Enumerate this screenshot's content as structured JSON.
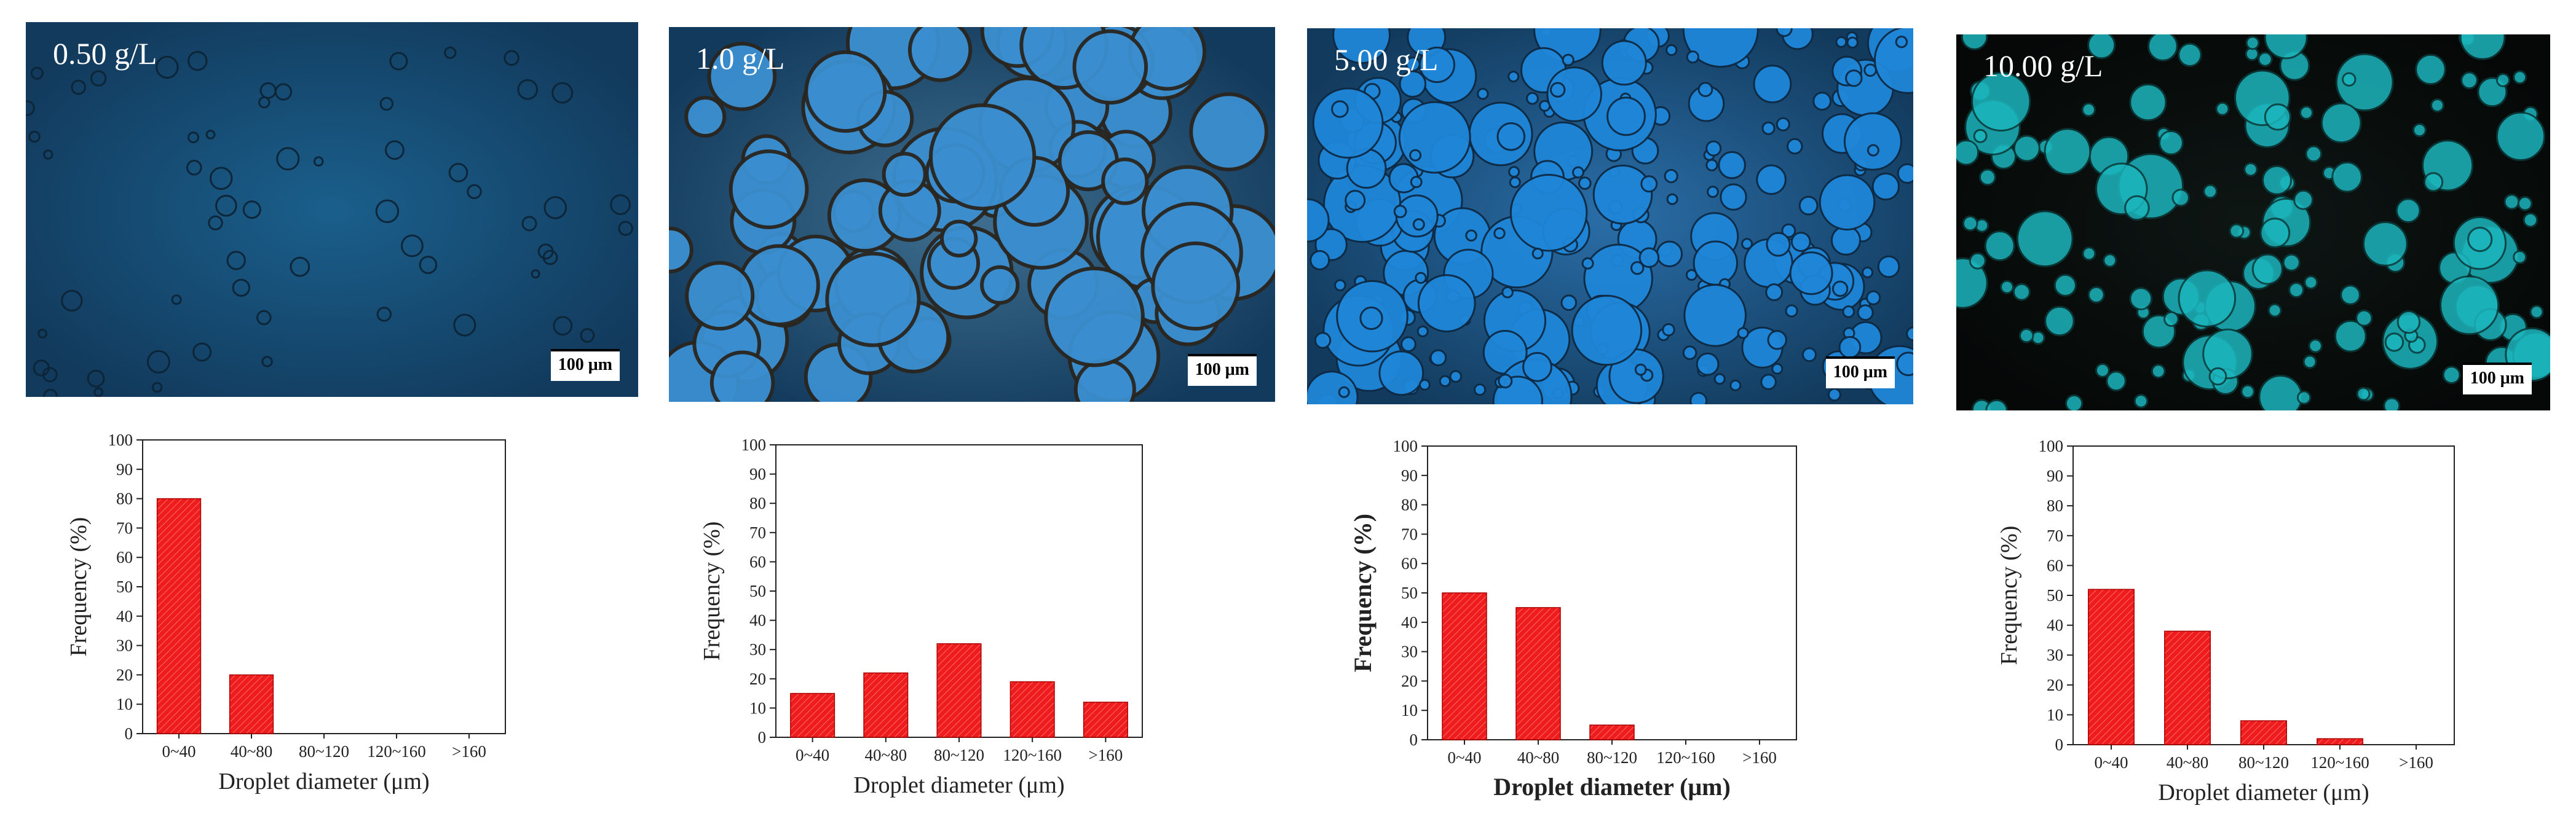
{
  "panels": [
    {
      "concentration_label": "0.50 g/L",
      "scale_bar": "100 μm",
      "background": "#1a5f8c",
      "chart_data": {
        "type": "bar",
        "categories": [
          "0~40",
          "40~80",
          "80~120",
          "120~160",
          ">160"
        ],
        "values": [
          80,
          20,
          0,
          0,
          0
        ],
        "xlabel": "Droplet diameter (μm)",
        "ylabel": "Frequency (%)",
        "ylim": [
          0,
          100
        ],
        "yticks": [
          0,
          10,
          20,
          30,
          40,
          50,
          60,
          70,
          80,
          90,
          100
        ],
        "bar_color": "#ee1c1c"
      }
    },
    {
      "concentration_label": "1.0 g/L",
      "scale_bar": "100 μm",
      "background": "#3f6f90",
      "chart_data": {
        "type": "bar",
        "categories": [
          "0~40",
          "40~80",
          "80~120",
          "120~160",
          ">160"
        ],
        "values": [
          15,
          22,
          32,
          19,
          12
        ],
        "xlabel": "Droplet diameter (μm)",
        "ylabel": "Frequency (%)",
        "ylim": [
          0,
          100
        ],
        "yticks": [
          0,
          10,
          20,
          30,
          40,
          50,
          60,
          70,
          80,
          90,
          100
        ],
        "bar_color": "#ee1c1c"
      }
    },
    {
      "concentration_label": "5.00 g/L",
      "scale_bar": "100 μm",
      "background": "#2a6ea8",
      "chart_data": {
        "type": "bar",
        "categories": [
          "0~40",
          "40~80",
          "80~120",
          "120~160",
          ">160"
        ],
        "values": [
          50,
          45,
          5,
          0,
          0
        ],
        "xlabel": "Droplet diameter (μm)",
        "ylabel": "Frequency (%)",
        "ylim": [
          0,
          100
        ],
        "yticks": [
          0,
          10,
          20,
          30,
          40,
          50,
          60,
          70,
          80,
          90,
          100
        ],
        "bar_color": "#ee1c1c"
      }
    },
    {
      "concentration_label": "10.00 g/L",
      "scale_bar": "100 μm",
      "background": "#0e1614",
      "chart_data": {
        "type": "bar",
        "categories": [
          "0~40",
          "40~80",
          "80~120",
          "120~160",
          ">160"
        ],
        "values": [
          52,
          38,
          8,
          2,
          0
        ],
        "xlabel": "Droplet diameter (μm)",
        "ylabel": "Frequency (%)",
        "ylim": [
          0,
          100
        ],
        "yticks": [
          0,
          10,
          20,
          30,
          40,
          50,
          60,
          70,
          80,
          90,
          100
        ],
        "bar_color": "#ee1c1c"
      }
    }
  ]
}
